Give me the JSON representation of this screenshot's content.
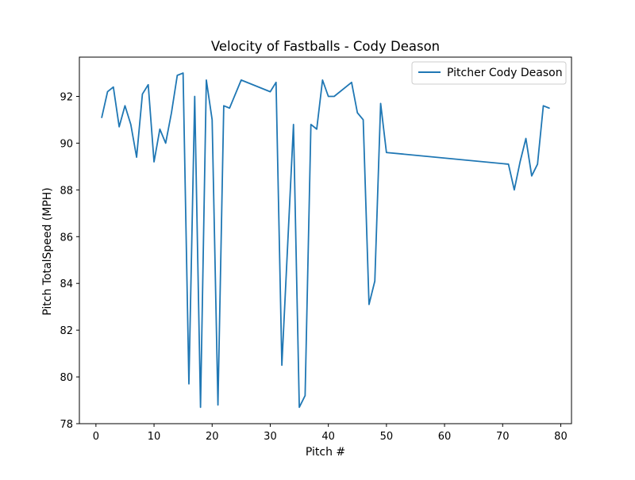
{
  "chart_data": {
    "type": "line",
    "title": "Velocity of Fastballs - Cody Deason",
    "xlabel": "Pitch #",
    "ylabel": "Pitch TotalSpeed (MPH)",
    "xlim": [
      -2.85,
      81.85
    ],
    "ylim": [
      78,
      93.68
    ],
    "xticks": [
      0,
      10,
      20,
      30,
      40,
      50,
      60,
      70,
      80
    ],
    "yticks": [
      78,
      80,
      82,
      84,
      86,
      88,
      90,
      92
    ],
    "xtick_labels": [
      "0",
      "10",
      "20",
      "30",
      "40",
      "50",
      "60",
      "70",
      "80"
    ],
    "ytick_labels": [
      "78",
      "80",
      "82",
      "84",
      "86",
      "88",
      "90",
      "92"
    ],
    "grid": false,
    "legend_position": "top-right",
    "series": [
      {
        "name": "Pitcher Cody Deason",
        "color": "#1f77b4",
        "x": [
          1,
          2,
          3,
          4,
          5,
          6,
          7,
          8,
          9,
          10,
          11,
          12,
          13,
          14,
          15,
          16,
          17,
          18,
          19,
          20,
          21,
          22,
          23,
          25,
          30,
          31,
          32,
          34,
          35,
          36,
          37,
          38,
          39,
          40,
          41,
          44,
          45,
          46,
          47,
          48,
          49,
          50,
          71,
          72,
          73,
          74,
          75,
          76,
          77,
          78
        ],
        "y": [
          91.1,
          92.2,
          92.4,
          90.7,
          91.6,
          90.8,
          89.4,
          92.1,
          92.5,
          89.2,
          90.6,
          90.0,
          91.3,
          92.9,
          93.0,
          79.7,
          92.0,
          78.7,
          92.7,
          91.0,
          78.8,
          91.6,
          91.5,
          92.7,
          92.2,
          92.6,
          80.5,
          90.8,
          78.7,
          79.2,
          90.8,
          90.6,
          92.7,
          92.0,
          92.0,
          92.6,
          91.3,
          91.0,
          83.1,
          84.1,
          91.7,
          89.6,
          89.1,
          88.0,
          89.2,
          90.2,
          88.6,
          89.1,
          91.6,
          91.5
        ]
      }
    ]
  }
}
